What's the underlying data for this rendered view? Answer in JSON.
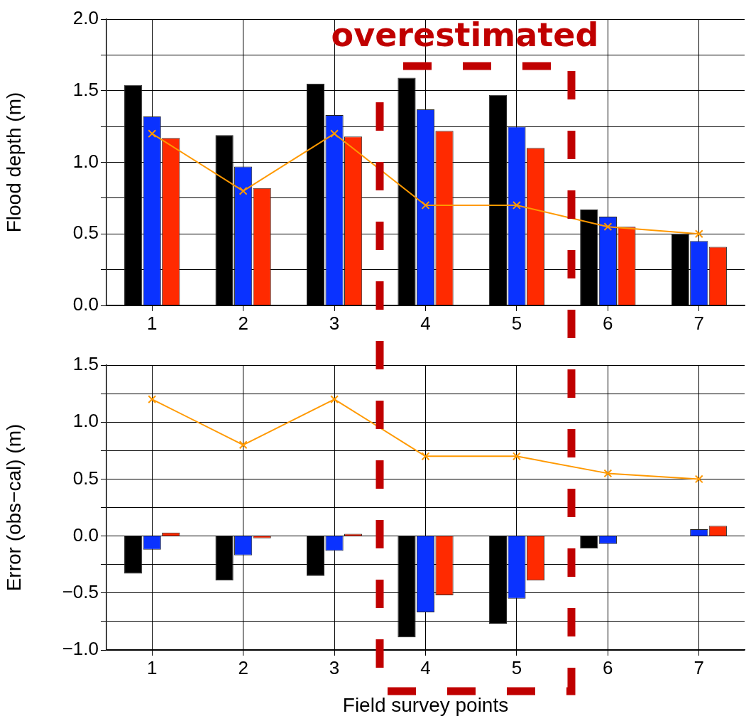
{
  "chart_data": [
    {
      "type": "bar",
      "ylabel": "Flood depth (m)",
      "categories": [
        "1",
        "2",
        "3",
        "4",
        "5",
        "6",
        "7"
      ],
      "ylim": [
        0,
        2
      ],
      "yticks": [
        {
          "value": 0,
          "label": "0.0"
        },
        {
          "value": 0.25,
          "label": null
        },
        {
          "value": 0.5,
          "label": "0.5"
        },
        {
          "value": 0.75,
          "label": null
        },
        {
          "value": 1,
          "label": "1.0"
        },
        {
          "value": 1.25,
          "label": null
        },
        {
          "value": 1.5,
          "label": "1.5"
        },
        {
          "value": 1.75,
          "label": null
        },
        {
          "value": 2,
          "label": "2.0"
        }
      ],
      "grid": true,
      "annotations": [
        "overestimated"
      ],
      "series": [
        {
          "color": "#000000",
          "values": [
            1.54,
            1.19,
            1.55,
            1.59,
            1.47,
            0.67,
            0.5
          ]
        },
        {
          "color": "#0a32ff",
          "values": [
            1.32,
            0.97,
            1.33,
            1.37,
            1.25,
            0.62,
            0.45
          ]
        },
        {
          "color": "#ff2a00",
          "values": [
            1.17,
            0.82,
            1.18,
            1.22,
            1.1,
            0.55,
            0.41
          ]
        },
        {
          "type": "line",
          "color": "#ff9900",
          "marker": "cross",
          "values": [
            1.2,
            0.8,
            1.2,
            0.7,
            0.7,
            0.55,
            0.5
          ]
        }
      ]
    },
    {
      "type": "bar",
      "ylabel": "Error (obs−cal) (m)",
      "xlabel": "Field survey points",
      "categories": [
        "1",
        "2",
        "3",
        "4",
        "5",
        "6",
        "7"
      ],
      "ylim": [
        -1,
        1.5
      ],
      "yticks": [
        {
          "value": -1,
          "label": "−1.0"
        },
        {
          "value": -0.75,
          "label": null
        },
        {
          "value": -0.5,
          "label": "−0.5"
        },
        {
          "value": -0.25,
          "label": null
        },
        {
          "value": 0,
          "label": "0.0"
        },
        {
          "value": 0.25,
          "label": null
        },
        {
          "value": 0.5,
          "label": "0.5"
        },
        {
          "value": 0.75,
          "label": null
        },
        {
          "value": 1,
          "label": "1.0"
        },
        {
          "value": 1.25,
          "label": null
        },
        {
          "value": 1.5,
          "label": "1.5"
        }
      ],
      "grid": true,
      "series": [
        {
          "color": "#000000",
          "values": [
            -0.33,
            -0.39,
            -0.35,
            -0.89,
            -0.77,
            -0.11,
            0
          ]
        },
        {
          "color": "#0a32ff",
          "values": [
            -0.12,
            -0.17,
            -0.13,
            -0.67,
            -0.55,
            -0.07,
            0.06
          ]
        },
        {
          "color": "#ff2a00",
          "values": [
            0.03,
            -0.02,
            0.02,
            -0.52,
            -0.39,
            0,
            0.09
          ]
        },
        {
          "type": "line",
          "color": "#ff9900",
          "marker": "cross",
          "values": [
            1.2,
            0.8,
            1.2,
            0.7,
            0.7,
            0.55,
            0.5
          ]
        }
      ]
    }
  ]
}
